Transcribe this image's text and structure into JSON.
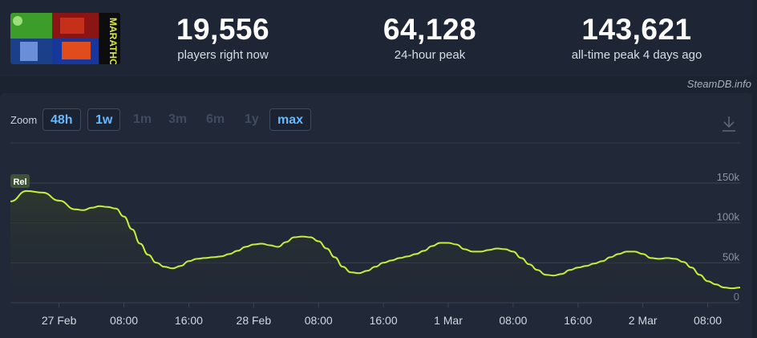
{
  "stats": {
    "players_now": {
      "value": "19,556",
      "label": "players right now"
    },
    "peak_24h": {
      "value": "64,128",
      "label": "24-hour peak"
    },
    "peak_all_time": {
      "value": "143,621",
      "label": "all-time peak 4 days ago"
    }
  },
  "thumbnail": {
    "title": "MARATHON",
    "icon": "game-thumbnail"
  },
  "watermark": "SteamDB.info",
  "zoom": {
    "label": "Zoom",
    "options": [
      {
        "label": "48h",
        "state": "active"
      },
      {
        "label": "1w",
        "state": "active"
      },
      {
        "label": "1m",
        "state": "inactive"
      },
      {
        "label": "3m",
        "state": "inactive"
      },
      {
        "label": "6m",
        "state": "inactive"
      },
      {
        "label": "1y",
        "state": "inactive"
      },
      {
        "label": "max",
        "state": "active"
      }
    ]
  },
  "download_icon": "download-icon",
  "colors": {
    "line": "#c5f03a",
    "grid": "#3a4454",
    "active_zoom": "#66b8ff",
    "background": "#1b2230"
  },
  "chart_data": {
    "type": "line",
    "series": [
      {
        "values": [
          [
            0,
            127000
          ],
          [
            2,
            140000
          ],
          [
            4,
            138000
          ],
          [
            6,
            128000
          ],
          [
            8,
            117000
          ],
          [
            9,
            116000
          ],
          [
            10,
            119000
          ],
          [
            11,
            121000
          ],
          [
            12,
            120000
          ],
          [
            13,
            118000
          ],
          [
            14,
            108000
          ],
          [
            15,
            92000
          ],
          [
            16,
            74000
          ],
          [
            17,
            60000
          ],
          [
            18,
            50000
          ],
          [
            19,
            45000
          ],
          [
            20,
            43000
          ],
          [
            21,
            46000
          ],
          [
            22,
            52000
          ],
          [
            23,
            55000
          ],
          [
            24,
            56000
          ],
          [
            25,
            57000
          ],
          [
            26,
            58000
          ],
          [
            27,
            61000
          ],
          [
            28,
            65000
          ],
          [
            29,
            70000
          ],
          [
            30,
            73000
          ],
          [
            31,
            74000
          ],
          [
            32,
            72000
          ],
          [
            33,
            70000
          ],
          [
            34,
            76000
          ],
          [
            35,
            82000
          ],
          [
            36,
            83000
          ],
          [
            37,
            82000
          ],
          [
            38,
            77000
          ],
          [
            39,
            68000
          ],
          [
            40,
            57000
          ],
          [
            41,
            45000
          ],
          [
            42,
            38000
          ],
          [
            43,
            37000
          ],
          [
            44,
            40000
          ],
          [
            45,
            45000
          ],
          [
            46,
            50000
          ],
          [
            47,
            53000
          ],
          [
            48,
            56000
          ],
          [
            49,
            58000
          ],
          [
            50,
            61000
          ],
          [
            51,
            65000
          ],
          [
            52,
            71000
          ],
          [
            53,
            75000
          ],
          [
            54,
            75000
          ],
          [
            55,
            73000
          ],
          [
            56,
            67000
          ],
          [
            57,
            64000
          ],
          [
            58,
            64000
          ],
          [
            59,
            66000
          ],
          [
            60,
            68000
          ],
          [
            61,
            67000
          ],
          [
            62,
            64000
          ],
          [
            63,
            56000
          ],
          [
            64,
            48000
          ],
          [
            65,
            41000
          ],
          [
            66,
            35000
          ],
          [
            67,
            34000
          ],
          [
            68,
            36000
          ],
          [
            69,
            41000
          ],
          [
            70,
            44000
          ],
          [
            71,
            46000
          ],
          [
            72,
            49000
          ],
          [
            73,
            52000
          ],
          [
            74,
            57000
          ],
          [
            75,
            61000
          ],
          [
            76,
            64000
          ],
          [
            77,
            64000
          ],
          [
            78,
            61000
          ],
          [
            79,
            56000
          ],
          [
            80,
            55000
          ],
          [
            81,
            56000
          ],
          [
            82,
            55000
          ],
          [
            83,
            51000
          ],
          [
            84,
            44000
          ],
          [
            85,
            35000
          ],
          [
            86,
            27000
          ],
          [
            87,
            23000
          ],
          [
            88,
            19000
          ],
          [
            89,
            18000
          ],
          [
            90,
            19000
          ]
        ]
      }
    ],
    "x_ticks": [
      {
        "label": "27 Feb",
        "x": 6
      },
      {
        "label": "08:00",
        "x": 14
      },
      {
        "label": "16:00",
        "x": 22
      },
      {
        "label": "28 Feb",
        "x": 30
      },
      {
        "label": "08:00",
        "x": 38
      },
      {
        "label": "16:00",
        "x": 46
      },
      {
        "label": "1 Mar",
        "x": 54
      },
      {
        "label": "08:00",
        "x": 62
      },
      {
        "label": "16:00",
        "x": 70
      },
      {
        "label": "2 Mar",
        "x": 78
      },
      {
        "label": "08:00",
        "x": 86
      }
    ],
    "y_ticks": [
      {
        "label": "150k",
        "value": 150000
      },
      {
        "label": "100k",
        "value": 100000
      },
      {
        "label": "50k",
        "value": 50000
      },
      {
        "label": "0",
        "value": 0
      }
    ],
    "xlim": [
      0,
      90
    ],
    "ylim": [
      0,
      150000
    ],
    "annotation": {
      "label": "Rel",
      "x": 0,
      "value": 150000
    },
    "grid": true
  }
}
